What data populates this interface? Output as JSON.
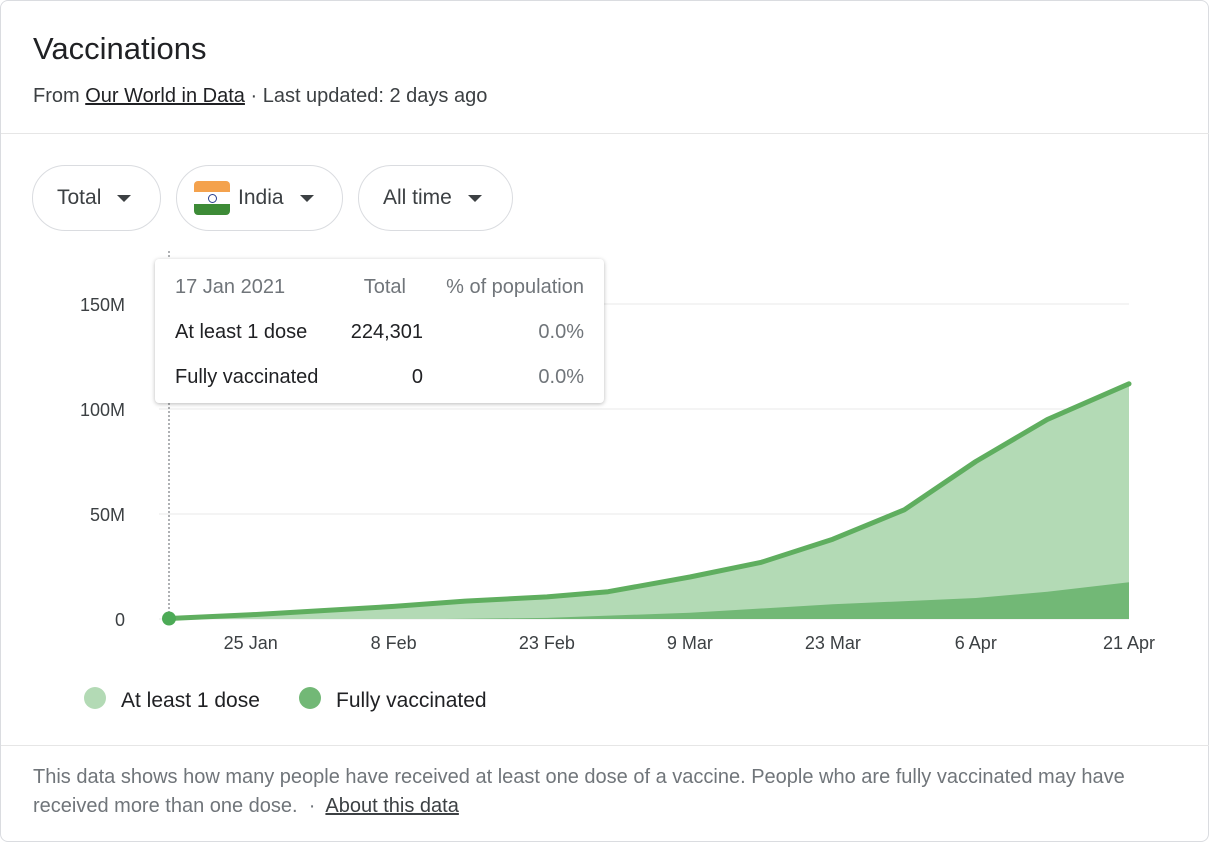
{
  "header": {
    "title": "Vaccinations",
    "from_prefix": "From",
    "source_link": "Our World in Data",
    "updated": "· Last updated: 2 days ago"
  },
  "filters": {
    "metric": "Total",
    "country": "India",
    "range": "All time"
  },
  "tooltip": {
    "date": "17 Jan 2021",
    "col_total": "Total",
    "col_pct": "% of population",
    "rows": [
      {
        "label": "At least 1 dose",
        "total": "224,301",
        "pct": "0.0%"
      },
      {
        "label": "Fully vaccinated",
        "total": "0",
        "pct": "0.0%"
      }
    ]
  },
  "legend": {
    "dose1": "At least 1 dose",
    "full": "Fully vaccinated"
  },
  "colors": {
    "dose1_fill": "#b3dab5",
    "dose1_line": "#5fae5f",
    "full_fill": "#72b876",
    "dot": "#4caa56"
  },
  "footer": {
    "text": "This data shows how many people have received at least one dose of a vaccine. People who are fully vaccinated may have received more than one dose.",
    "separator": "·",
    "about_link": "About this data"
  },
  "chart_data": {
    "type": "area",
    "x_start": "2021-01-17",
    "x_end": "2021-04-21",
    "x_ticks": [
      {
        "label": "25 Jan",
        "date": "2021-01-25"
      },
      {
        "label": "8 Feb",
        "date": "2021-02-08"
      },
      {
        "label": "23 Feb",
        "date": "2021-02-23"
      },
      {
        "label": "9 Mar",
        "date": "2021-03-09"
      },
      {
        "label": "23 Mar",
        "date": "2021-03-23"
      },
      {
        "label": "6 Apr",
        "date": "2021-04-06"
      },
      {
        "label": "21 Apr",
        "date": "2021-04-21"
      }
    ],
    "y_ticks": [
      {
        "label": "0",
        "value": 0
      },
      {
        "label": "50M",
        "value": 50000000
      },
      {
        "label": "100M",
        "value": 100000000
      },
      {
        "label": "150M",
        "value": 150000000
      }
    ],
    "ylim": [
      0,
      150000000
    ],
    "grid": true,
    "legend_position": "bottom-left",
    "highlight_date": "2021-01-17",
    "series": [
      {
        "name": "At least 1 dose",
        "points": [
          [
            "2021-01-17",
            224301
          ],
          [
            "2021-01-25",
            2000000
          ],
          [
            "2021-02-01",
            4000000
          ],
          [
            "2021-02-08",
            6000000
          ],
          [
            "2021-02-15",
            8500000
          ],
          [
            "2021-02-23",
            10500000
          ],
          [
            "2021-03-01",
            13000000
          ],
          [
            "2021-03-09",
            20000000
          ],
          [
            "2021-03-16",
            27000000
          ],
          [
            "2021-03-23",
            38000000
          ],
          [
            "2021-03-30",
            52000000
          ],
          [
            "2021-04-06",
            75000000
          ],
          [
            "2021-04-13",
            95000000
          ],
          [
            "2021-04-21",
            112000000
          ]
        ]
      },
      {
        "name": "Fully vaccinated",
        "points": [
          [
            "2021-01-17",
            0
          ],
          [
            "2021-02-13",
            0
          ],
          [
            "2021-02-23",
            500000
          ],
          [
            "2021-03-09",
            3000000
          ],
          [
            "2021-03-23",
            7000000
          ],
          [
            "2021-04-06",
            10000000
          ],
          [
            "2021-04-13",
            13000000
          ],
          [
            "2021-04-21",
            17500000
          ]
        ]
      }
    ]
  }
}
